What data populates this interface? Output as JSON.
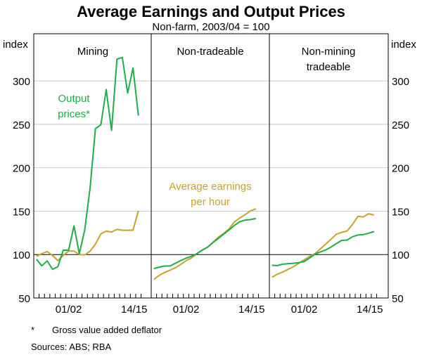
{
  "chart_data": {
    "type": "line",
    "title": "Average Earnings and Output Prices",
    "subtitle": "Non-farm, 2003/04 = 100",
    "ylabel_left": "index",
    "ylabel_right": "index",
    "ylim": [
      50,
      325
    ],
    "yticks": [
      50,
      100,
      150,
      200,
      250,
      300
    ],
    "xtick_labels": [
      "01/02",
      "14/15"
    ],
    "x": [
      "1995/96",
      "1996/97",
      "1997/98",
      "1998/99",
      "1999/00",
      "2000/01",
      "2001/02",
      "2002/03",
      "2003/04",
      "2004/05",
      "2005/06",
      "2006/07",
      "2007/08",
      "2008/09",
      "2009/10",
      "2010/11",
      "2011/12",
      "2012/13",
      "2013/14",
      "2014/15"
    ],
    "grid": true,
    "reference_line": 100,
    "colors": {
      "output_prices": "#1fad4a",
      "average_earnings": "#c4a42c"
    },
    "series_labels": {
      "output_prices": "Output prices*",
      "average_earnings": "Average earnings per hour"
    },
    "panels": [
      {
        "title": "Mining",
        "output_prices": [
          94.6,
          87,
          92.7,
          83,
          86,
          105,
          105,
          133,
          101,
          128.5,
          177,
          245,
          249.5,
          290,
          243,
          325,
          327,
          286,
          315,
          260
        ],
        "average_earnings": [
          98,
          101,
          103.5,
          99,
          93,
          99,
          104,
          104,
          100,
          99.5,
          104,
          112,
          123.7,
          127,
          126,
          129,
          128,
          128,
          128,
          150.5
        ]
      },
      {
        "title": "Non-tradeable",
        "output_prices": [
          83.9,
          85.5,
          86.8,
          86.8,
          90,
          93,
          95.8,
          98,
          101,
          105,
          108.5,
          113.8,
          118.5,
          123.5,
          128.3,
          133.6,
          137.8,
          139.7,
          140.2,
          141.5
        ],
        "average_earnings": [
          71.4,
          76,
          79.4,
          82,
          84.7,
          88.6,
          93,
          96,
          101,
          105.3,
          108.5,
          114,
          120,
          124.3,
          129.6,
          137.6,
          142,
          146,
          150.3,
          152.6
        ]
      },
      {
        "title": "Non-mining tradeable",
        "output_prices": [
          87.6,
          87.3,
          88.9,
          89.4,
          90,
          90.7,
          92,
          96,
          100.5,
          103,
          105.3,
          108.7,
          112.7,
          116.4,
          116.7,
          120.6,
          122.5,
          123,
          124.6,
          126.5
        ],
        "average_earnings": [
          73.8,
          77.5,
          79.9,
          83,
          86,
          90,
          94,
          97.9,
          101,
          106.6,
          112,
          117.7,
          123.5,
          125.6,
          127.2,
          134.9,
          144,
          143.4,
          147,
          145.5
        ]
      }
    ]
  },
  "footnote": {
    "marker": "*",
    "text": "Gross value added deflator"
  },
  "sources": "Sources:  ABS; RBA"
}
